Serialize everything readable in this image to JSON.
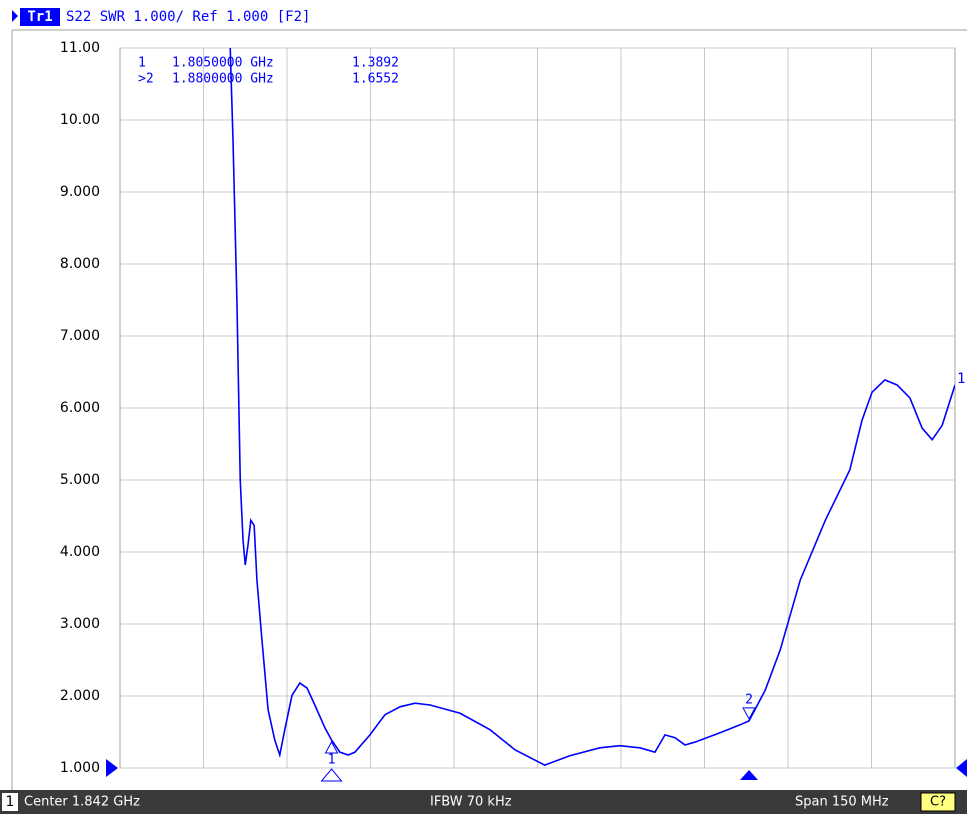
{
  "header": {
    "trace": "Tr1",
    "text": "S22 SWR 1.000/ Ref 1.000 [F2]"
  },
  "chart_data": {
    "type": "line",
    "x": [
      1.7868,
      1.7873,
      1.788,
      1.7886,
      1.7891,
      1.7895,
      1.79,
      1.7905,
      1.7911,
      1.7916,
      1.7925,
      1.7936,
      1.7948,
      1.7957,
      1.7966,
      1.7979,
      1.7993,
      1.8006,
      1.802,
      1.8038,
      1.805,
      1.8065,
      1.808,
      1.8092,
      1.8119,
      1.8146,
      1.8173,
      1.82,
      1.8227,
      1.8281,
      1.8335,
      1.838,
      1.8433,
      1.8478,
      1.8532,
      1.8568,
      1.8604,
      1.8631,
      1.8649,
      1.8667,
      1.8685,
      1.8703,
      1.8748,
      1.8784,
      1.88,
      1.8829,
      1.8856,
      1.8892,
      1.8937,
      1.8981,
      1.9003,
      1.9021,
      1.9044,
      1.9066,
      1.9089,
      1.9111,
      1.9129,
      1.9147,
      1.917
    ],
    "series": [
      {
        "color": "#0000ff",
        "values": [
          11,
          9.72,
          7.5,
          5.0,
          4.17,
          3.82,
          4.1,
          4.44,
          4.37,
          3.61,
          2.78,
          1.81,
          1.39,
          1.18,
          1.53,
          2.01,
          2.18,
          2.11,
          1.875,
          1.56,
          1.3892,
          1.22,
          1.18,
          1.22,
          1.46,
          1.74,
          1.85,
          1.9,
          1.875,
          1.76,
          1.53,
          1.25,
          1.04,
          1.17,
          1.28,
          1.31,
          1.28,
          1.22,
          1.46,
          1.42,
          1.32,
          1.36,
          1.49,
          1.6,
          1.6552,
          2.08,
          2.64,
          3.61,
          4.44,
          5.14,
          5.83,
          6.22,
          6.39,
          6.32,
          6.14,
          5.72,
          5.56,
          5.76,
          6.32
        ]
      }
    ],
    "trace_end_label": "1",
    "xlim": [
      1.767,
      1.917
    ],
    "ylim": [
      1,
      11
    ],
    "yticks": [
      {
        "value": 11,
        "label": "11.00"
      },
      {
        "value": 10,
        "label": "10.00"
      },
      {
        "value": 9,
        "label": "9.000"
      },
      {
        "value": 8,
        "label": "8.000"
      },
      {
        "value": 7,
        "label": "7.000"
      },
      {
        "value": 6,
        "label": "6.000"
      },
      {
        "value": 5,
        "label": "5.000"
      },
      {
        "value": 4,
        "label": "4.000"
      },
      {
        "value": 3,
        "label": "3.000"
      },
      {
        "value": 2,
        "label": "2.000"
      },
      {
        "value": 1,
        "label": "1.000"
      }
    ],
    "grid": true,
    "markers": [
      {
        "name": "1",
        "readout_name": "1",
        "x": 1.805,
        "x_label": "1.8050000 GHz",
        "value": 1.3892
      },
      {
        "name": "2",
        "readout_name": ">2",
        "x": 1.88,
        "x_label": "1.8800000 GHz",
        "value": 1.6552
      }
    ]
  },
  "footer": {
    "channel": "1",
    "center": "Center 1.842 GHz",
    "ifbw": "IFBW 70 kHz",
    "span": "Span 150 MHz",
    "status": "C?"
  }
}
